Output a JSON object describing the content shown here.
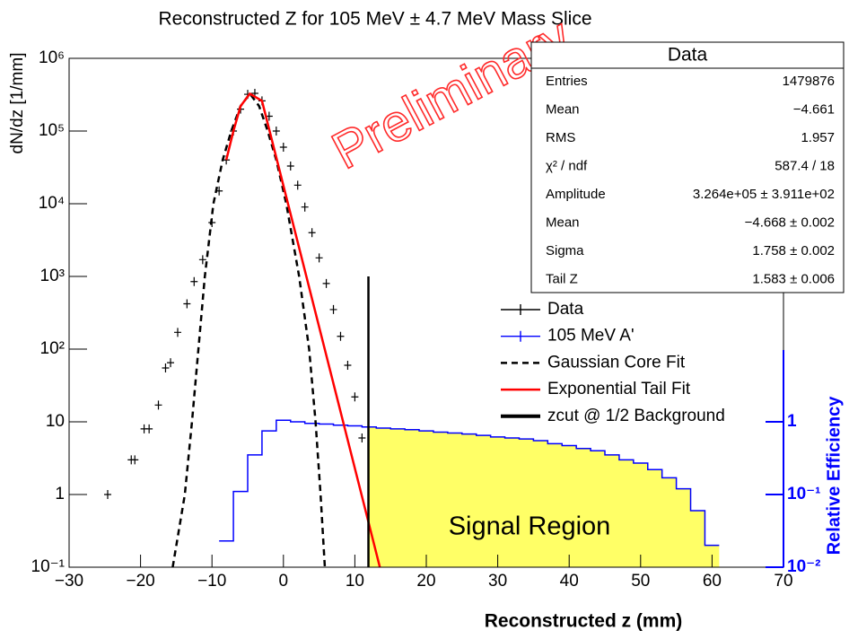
{
  "chart_data": {
    "type": "hist",
    "title": "Reconstructed Z for 105 MeV ± 4.7 MeV Mass Slice",
    "x_label": "Reconstructed z (mm)",
    "y_label": "dN/dz [1/mm]",
    "y2_label": "Relative Efficiency",
    "annotations": [
      "Preliminary",
      "Signal Region"
    ],
    "log_y": true,
    "xlim": [
      -30,
      70
    ],
    "xticks": [
      {
        "value": -30,
        "label": "−30"
      },
      {
        "value": -20,
        "label": "−20"
      },
      {
        "value": -10,
        "label": "−10"
      },
      0,
      10,
      20,
      30,
      40,
      50,
      60,
      70
    ],
    "ylim": [
      0.1,
      1000000
    ],
    "yticks": [
      {
        "value": 0.1,
        "label": "10⁻¹"
      },
      1,
      10,
      {
        "value": 100,
        "label": "10²"
      },
      {
        "value": 1000,
        "label": "10³"
      },
      {
        "value": 10000,
        "label": "10⁴"
      },
      {
        "value": 100000,
        "label": "10⁵"
      },
      {
        "value": 1000000,
        "label": "10⁶"
      }
    ],
    "y2lim": [
      0.01,
      100000
    ],
    "y2ticks": [
      {
        "value": 0.01,
        "label": "10⁻²"
      },
      {
        "value": 0.1,
        "label": "10⁻¹"
      },
      1
    ],
    "y2_color": "#0000ff",
    "series": [
      {
        "name": "Data",
        "color": "#000000",
        "style": "marker",
        "x": [
          -24.6,
          -21.3,
          -20.8,
          -19.5,
          -18.8,
          -17.5,
          -16.5,
          -15.8,
          -14.8,
          -13.5,
          -12.5,
          -11.3,
          -10,
          -9,
          -8,
          -7,
          -6,
          -5,
          -4,
          -3,
          -2,
          -1,
          0,
          1,
          2,
          3,
          4,
          5,
          6,
          7,
          8,
          9,
          10,
          11
        ],
        "values": [
          1,
          3,
          3,
          8,
          8,
          17,
          55,
          65,
          170,
          420,
          850,
          1700,
          5500,
          15000,
          40000,
          100000,
          200000,
          320000,
          330000,
          260000,
          160000,
          100000,
          60000,
          33000,
          18000,
          9000,
          4000,
          1800,
          800,
          350,
          150,
          60,
          22,
          6
        ]
      },
      {
        "name": "105 MeV A'",
        "color": "#0000ff",
        "style": "step",
        "axis": "y2",
        "fill": "#ffff66",
        "x": [
          -8,
          -6,
          -4,
          -2,
          0,
          2,
          4,
          6,
          8,
          10,
          12,
          14,
          16,
          18,
          20,
          22,
          24,
          26,
          28,
          30,
          32,
          34,
          36,
          38,
          40,
          42,
          44,
          46,
          48,
          50,
          52,
          54,
          56,
          58,
          60
        ],
        "values": [
          0.023,
          0.11,
          0.35,
          0.75,
          1.05,
          1.0,
          0.95,
          0.93,
          0.9,
          0.88,
          0.85,
          0.82,
          0.8,
          0.78,
          0.75,
          0.72,
          0.7,
          0.68,
          0.65,
          0.62,
          0.6,
          0.58,
          0.55,
          0.5,
          0.47,
          0.43,
          0.4,
          0.35,
          0.3,
          0.27,
          0.22,
          0.17,
          0.12,
          0.06,
          0.02
        ]
      },
      {
        "name": "Gaussian Core Fit",
        "color": "#000000",
        "style": "dashed",
        "x": [
          -15.5,
          -13.8,
          -12.8,
          -11.9,
          -11,
          -9.8,
          -8.5,
          -7.3,
          -6,
          -4.7,
          -3.4,
          -2.2,
          -1,
          0.4,
          2.2,
          3.6,
          4.5,
          5.2,
          5.8
        ],
        "values": [
          0.1,
          1,
          10,
          100,
          1000,
          10000,
          40000,
          100000,
          220000,
          326400,
          220000,
          100000,
          40000,
          10000,
          1000,
          100,
          10,
          1,
          0.1
        ]
      },
      {
        "name": "Exponential Tail Fit",
        "color": "#ff0000",
        "style": "solid",
        "x": [
          -8,
          -7,
          -6,
          -4.7,
          -3,
          13.5
        ],
        "values": [
          40000,
          100000,
          220000,
          326400,
          260000,
          0.1
        ]
      },
      {
        "name": "zcut @ 1/2 Background",
        "color": "#000000",
        "style": "vline",
        "x": [
          11.9,
          11.9
        ],
        "values": [
          0.1,
          1000
        ]
      }
    ],
    "stats": {
      "title": "Data",
      "rows": [
        [
          "Entries",
          "1479876"
        ],
        [
          "Mean",
          "−4.661"
        ],
        [
          "RMS",
          "1.957"
        ],
        [
          "χ² / ndf",
          "587.4 / 18"
        ],
        [
          "Amplitude",
          "3.264e+05 ± 3.911e+02"
        ],
        [
          "Mean",
          "−4.668 ± 0.002"
        ],
        [
          "Sigma",
          "1.758 ± 0.002"
        ],
        [
          "Tail Z",
          "1.583 ± 0.006"
        ]
      ]
    }
  }
}
